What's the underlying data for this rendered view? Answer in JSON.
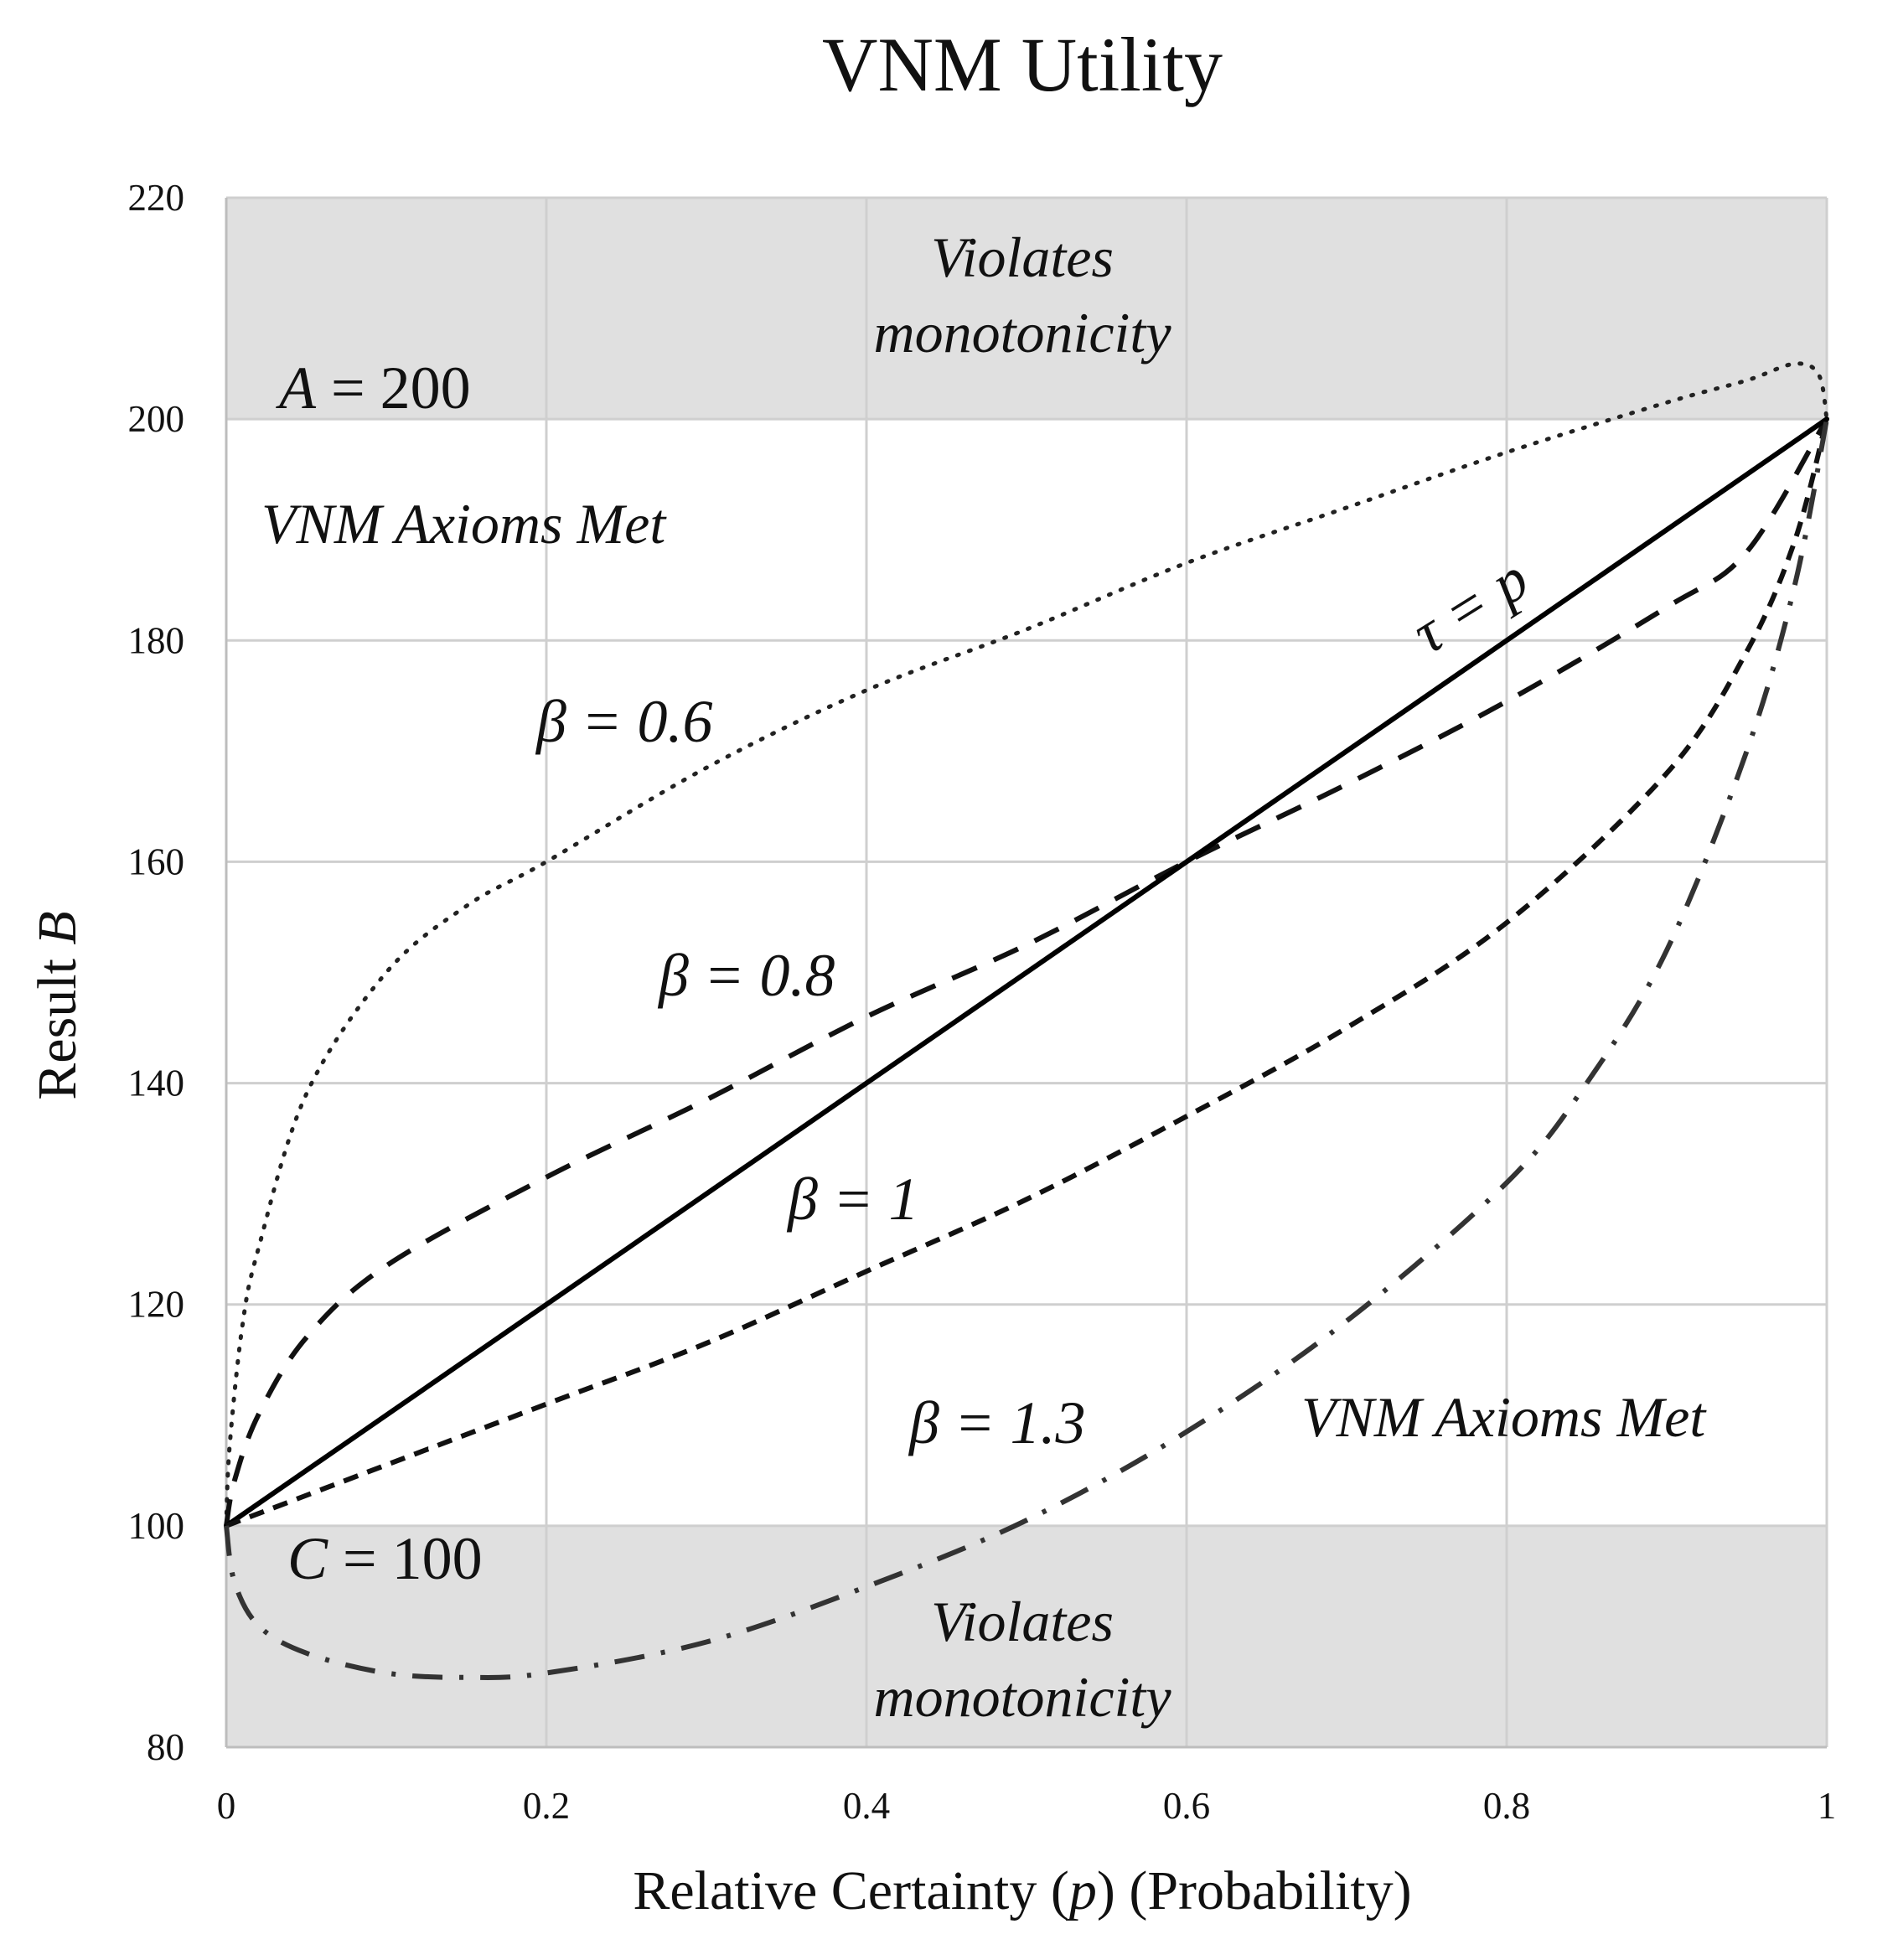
{
  "chart_data": {
    "type": "line",
    "title": "VNM Utility",
    "xlabel": {
      "prefix": "Relative Certainty (",
      "var": "p",
      "suffix": ")  (Probability)"
    },
    "ylabel": {
      "prefix": "Result ",
      "var": "B"
    },
    "xlim": [
      0,
      1
    ],
    "ylim": [
      80,
      220
    ],
    "grid": true,
    "x_ticks": [
      {
        "value": 0,
        "label": "0"
      },
      {
        "value": 0.2,
        "label": "0.2"
      },
      {
        "value": 0.4,
        "label": "0.4"
      },
      {
        "value": 0.6,
        "label": "0.6"
      },
      {
        "value": 0.8,
        "label": "0.8"
      },
      {
        "value": 1,
        "label": "1"
      }
    ],
    "y_ticks": [
      {
        "value": 80,
        "label": "80"
      },
      {
        "value": 100,
        "label": "100"
      },
      {
        "value": 120,
        "label": "120"
      },
      {
        "value": 140,
        "label": "140"
      },
      {
        "value": 160,
        "label": "160"
      },
      {
        "value": 180,
        "label": "180"
      },
      {
        "value": 200,
        "label": "200"
      },
      {
        "value": 220,
        "label": "220"
      }
    ],
    "shaded_regions": [
      {
        "name": "upper-violation",
        "y_range": [
          200,
          220
        ],
        "color": "#e0e0e0"
      },
      {
        "name": "lower-violation",
        "y_range": [
          80,
          100
        ],
        "color": "#e0e0e0"
      }
    ],
    "series": [
      {
        "name": "beta-0.6",
        "style": "dotted",
        "color": "#222222",
        "x": [
          0,
          0.002,
          0.01,
          0.02,
          0.05,
          0.1,
          0.15,
          0.2,
          0.3,
          0.4,
          0.5,
          0.6,
          0.7,
          0.8,
          0.9,
          0.95,
          0.98,
          0.995,
          1
        ],
        "y": [
          100,
          107,
          118,
          125,
          139,
          150,
          156,
          160,
          168.5,
          175.5,
          181,
          187,
          192,
          197,
          201.5,
          203.5,
          205,
          204,
          200
        ]
      },
      {
        "name": "beta-0.8",
        "style": "dashed",
        "color": "#111111",
        "x": [
          0,
          0.005,
          0.02,
          0.05,
          0.1,
          0.2,
          0.3,
          0.4,
          0.5,
          0.6,
          0.7,
          0.8,
          0.9,
          0.95,
          1
        ],
        "y": [
          100,
          104,
          110,
          117,
          123.5,
          131.5,
          138.5,
          146,
          152.5,
          160,
          167,
          174.5,
          183,
          188,
          200
        ]
      },
      {
        "name": "tau-equals-p",
        "style": "solid",
        "color": "#000000",
        "x": [
          0,
          1
        ],
        "y": [
          100,
          200
        ]
      },
      {
        "name": "beta-1",
        "style": "short-dashed",
        "color": "#111111",
        "x": [
          0,
          0.1,
          0.2,
          0.3,
          0.4,
          0.5,
          0.6,
          0.7,
          0.8,
          0.9,
          0.95,
          0.98,
          1
        ],
        "y": [
          100,
          105.5,
          111,
          116.5,
          123,
          129.5,
          137,
          145,
          154.5,
          168,
          179,
          189,
          200
        ]
      },
      {
        "name": "beta-1.3",
        "style": "dash-dot",
        "color": "#333333",
        "x": [
          0,
          0.005,
          0.02,
          0.05,
          0.1,
          0.15,
          0.2,
          0.3,
          0.4,
          0.5,
          0.6,
          0.7,
          0.8,
          0.85,
          0.9,
          0.95,
          0.98,
          1
        ],
        "y": [
          100,
          95,
          91,
          88.5,
          86.7,
          86.3,
          86.7,
          89.5,
          94.5,
          100.5,
          108.5,
          118.5,
          131,
          140,
          152,
          170,
          185,
          200
        ]
      }
    ]
  },
  "annotations": {
    "upper_region_line1": "Violates",
    "upper_region_line2": "monotonicity",
    "lower_region_line1": "Violates",
    "lower_region_line2": "monotonicity",
    "region_met_upper": "VNM Axioms Met",
    "region_met_lower": "VNM Axioms Met",
    "label_a": {
      "var": "A",
      "rest": " = 200"
    },
    "label_c": {
      "var": "C",
      "rest": " = 100"
    },
    "label_tau": "τ = p",
    "label_beta_06": "β = 0.6",
    "label_beta_08": "β = 0.8",
    "label_beta_1": "β = 1",
    "label_beta_13": "β = 1.3"
  }
}
